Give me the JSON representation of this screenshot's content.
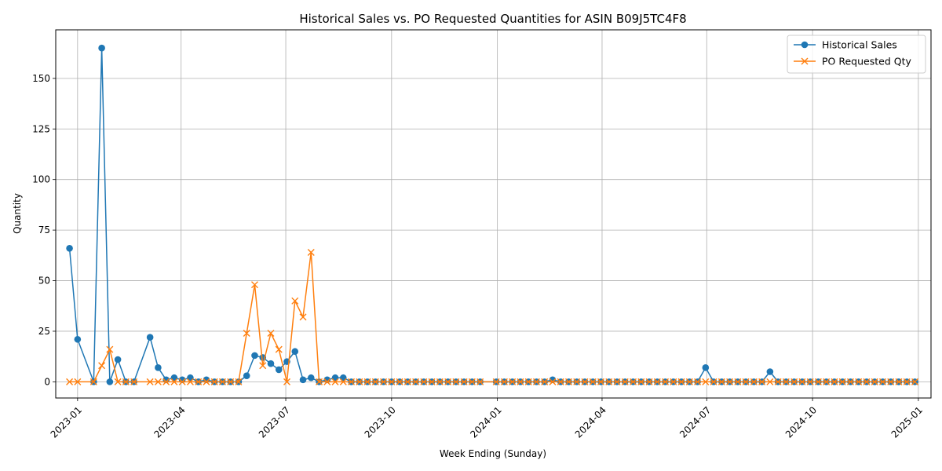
{
  "chart_data": {
    "type": "line",
    "title": "Historical Sales vs. PO Requested Quantities for ASIN B09J5TC4F8",
    "xlabel": "Week Ending (Sunday)",
    "ylabel": "Quantity",
    "x_range": [
      "2022-12-13",
      "2025-01-12"
    ],
    "ylim": [
      -8,
      174
    ],
    "grid": true,
    "legend_position": "top-right",
    "x_ticks": [
      {
        "date": "2023-01-01",
        "label": "2023-01"
      },
      {
        "date": "2023-04-01",
        "label": "2023-04"
      },
      {
        "date": "2023-07-01",
        "label": "2023-07"
      },
      {
        "date": "2023-10-01",
        "label": "2023-10"
      },
      {
        "date": "2024-01-01",
        "label": "2024-01"
      },
      {
        "date": "2024-04-01",
        "label": "2024-04"
      },
      {
        "date": "2024-07-01",
        "label": "2024-07"
      },
      {
        "date": "2024-10-01",
        "label": "2024-10"
      },
      {
        "date": "2025-01-01",
        "label": "2025-01"
      }
    ],
    "y_ticks": [
      0,
      25,
      50,
      75,
      100,
      125,
      150
    ],
    "series": [
      {
        "name": "Historical Sales",
        "color": "#1f77b4",
        "marker": "circle",
        "points": [
          [
            "2022-12-25",
            66
          ],
          [
            "2023-01-01",
            21
          ],
          [
            "2023-01-15",
            0
          ],
          [
            "2023-01-22",
            165
          ],
          [
            "2023-01-29",
            0
          ],
          [
            "2023-02-05",
            11
          ],
          [
            "2023-02-12",
            0
          ],
          [
            "2023-02-19",
            0
          ],
          [
            "2023-03-05",
            22
          ],
          [
            "2023-03-12",
            7
          ],
          [
            "2023-03-19",
            1
          ],
          [
            "2023-03-26",
            2
          ],
          [
            "2023-04-02",
            1
          ],
          [
            "2023-04-09",
            2
          ],
          [
            "2023-04-16",
            0
          ],
          [
            "2023-04-23",
            1
          ],
          [
            "2023-04-30",
            0
          ],
          [
            "2023-05-07",
            0
          ],
          [
            "2023-05-14",
            0
          ],
          [
            "2023-05-21",
            0
          ],
          [
            "2023-05-28",
            3
          ],
          [
            "2023-06-04",
            13
          ],
          [
            "2023-06-11",
            12
          ],
          [
            "2023-06-18",
            9
          ],
          [
            "2023-06-25",
            6
          ],
          [
            "2023-07-02",
            10
          ],
          [
            "2023-07-09",
            15
          ],
          [
            "2023-07-16",
            1
          ],
          [
            "2023-07-23",
            2
          ],
          [
            "2023-07-30",
            0
          ],
          [
            "2023-08-06",
            1
          ],
          [
            "2023-08-13",
            2
          ],
          [
            "2023-08-20",
            2
          ],
          [
            "2023-08-27",
            0
          ],
          [
            "2023-09-03",
            0
          ],
          [
            "2023-09-10",
            0
          ],
          [
            "2023-09-17",
            0
          ],
          [
            "2023-09-24",
            0
          ],
          [
            "2023-10-01",
            0
          ],
          [
            "2023-10-08",
            0
          ],
          [
            "2023-10-15",
            0
          ],
          [
            "2023-10-22",
            0
          ],
          [
            "2023-10-29",
            0
          ],
          [
            "2023-11-05",
            0
          ],
          [
            "2023-11-12",
            0
          ],
          [
            "2023-11-19",
            0
          ],
          [
            "2023-11-26",
            0
          ],
          [
            "2023-12-03",
            0
          ],
          [
            "2023-12-10",
            0
          ],
          [
            "2023-12-17",
            0
          ],
          [
            "2023-12-31",
            0
          ],
          [
            "2024-01-07",
            0
          ],
          [
            "2024-01-14",
            0
          ],
          [
            "2024-01-21",
            0
          ],
          [
            "2024-01-28",
            0
          ],
          [
            "2024-02-04",
            0
          ],
          [
            "2024-02-11",
            0
          ],
          [
            "2024-02-18",
            1
          ],
          [
            "2024-02-25",
            0
          ],
          [
            "2024-03-03",
            0
          ],
          [
            "2024-03-10",
            0
          ],
          [
            "2024-03-17",
            0
          ],
          [
            "2024-03-24",
            0
          ],
          [
            "2024-03-31",
            0
          ],
          [
            "2024-04-07",
            0
          ],
          [
            "2024-04-14",
            0
          ],
          [
            "2024-04-21",
            0
          ],
          [
            "2024-04-28",
            0
          ],
          [
            "2024-05-05",
            0
          ],
          [
            "2024-05-12",
            0
          ],
          [
            "2024-05-19",
            0
          ],
          [
            "2024-05-26",
            0
          ],
          [
            "2024-06-02",
            0
          ],
          [
            "2024-06-09",
            0
          ],
          [
            "2024-06-16",
            0
          ],
          [
            "2024-06-23",
            0
          ],
          [
            "2024-06-30",
            7
          ],
          [
            "2024-07-07",
            0
          ],
          [
            "2024-07-14",
            0
          ],
          [
            "2024-07-21",
            0
          ],
          [
            "2024-07-28",
            0
          ],
          [
            "2024-08-04",
            0
          ],
          [
            "2024-08-11",
            0
          ],
          [
            "2024-08-18",
            0
          ],
          [
            "2024-08-25",
            5
          ],
          [
            "2024-09-01",
            0
          ],
          [
            "2024-09-08",
            0
          ],
          [
            "2024-09-15",
            0
          ],
          [
            "2024-09-22",
            0
          ],
          [
            "2024-09-29",
            0
          ],
          [
            "2024-10-06",
            0
          ],
          [
            "2024-10-13",
            0
          ],
          [
            "2024-10-20",
            0
          ],
          [
            "2024-10-27",
            0
          ],
          [
            "2024-11-03",
            0
          ],
          [
            "2024-11-10",
            0
          ],
          [
            "2024-11-17",
            0
          ],
          [
            "2024-11-24",
            0
          ],
          [
            "2024-12-01",
            0
          ],
          [
            "2024-12-08",
            0
          ],
          [
            "2024-12-15",
            0
          ],
          [
            "2024-12-22",
            0
          ],
          [
            "2024-12-29",
            0
          ]
        ]
      },
      {
        "name": "PO Requested Qty",
        "color": "#ff7f0e",
        "marker": "x",
        "points": [
          [
            "2022-12-25",
            0
          ],
          [
            "2023-01-01",
            0
          ],
          [
            "2023-01-15",
            0
          ],
          [
            "2023-01-22",
            8
          ],
          [
            "2023-01-29",
            16
          ],
          [
            "2023-02-05",
            0
          ],
          [
            "2023-02-12",
            0
          ],
          [
            "2023-02-19",
            0
          ],
          [
            "2023-03-05",
            0
          ],
          [
            "2023-03-12",
            0
          ],
          [
            "2023-03-19",
            0
          ],
          [
            "2023-03-26",
            0
          ],
          [
            "2023-04-02",
            0
          ],
          [
            "2023-04-09",
            0
          ],
          [
            "2023-04-16",
            0
          ],
          [
            "2023-04-23",
            0
          ],
          [
            "2023-04-30",
            0
          ],
          [
            "2023-05-07",
            0
          ],
          [
            "2023-05-14",
            0
          ],
          [
            "2023-05-21",
            0
          ],
          [
            "2023-05-28",
            24
          ],
          [
            "2023-06-04",
            48
          ],
          [
            "2023-06-11",
            8
          ],
          [
            "2023-06-18",
            24
          ],
          [
            "2023-06-25",
            16
          ],
          [
            "2023-07-02",
            0
          ],
          [
            "2023-07-09",
            40
          ],
          [
            "2023-07-16",
            32
          ],
          [
            "2023-07-23",
            64
          ],
          [
            "2023-07-30",
            0
          ],
          [
            "2023-08-06",
            0
          ],
          [
            "2023-08-13",
            0
          ],
          [
            "2023-08-20",
            0
          ],
          [
            "2023-08-27",
            0
          ],
          [
            "2023-09-03",
            0
          ],
          [
            "2023-09-10",
            0
          ],
          [
            "2023-09-17",
            0
          ],
          [
            "2023-09-24",
            0
          ],
          [
            "2023-10-01",
            0
          ],
          [
            "2023-10-08",
            0
          ],
          [
            "2023-10-15",
            0
          ],
          [
            "2023-10-22",
            0
          ],
          [
            "2023-10-29",
            0
          ],
          [
            "2023-11-05",
            0
          ],
          [
            "2023-11-12",
            0
          ],
          [
            "2023-11-19",
            0
          ],
          [
            "2023-11-26",
            0
          ],
          [
            "2023-12-03",
            0
          ],
          [
            "2023-12-10",
            0
          ],
          [
            "2023-12-17",
            0
          ],
          [
            "2023-12-31",
            0
          ],
          [
            "2024-01-07",
            0
          ],
          [
            "2024-01-14",
            0
          ],
          [
            "2024-01-21",
            0
          ],
          [
            "2024-01-28",
            0
          ],
          [
            "2024-02-04",
            0
          ],
          [
            "2024-02-11",
            0
          ],
          [
            "2024-02-18",
            0
          ],
          [
            "2024-02-25",
            0
          ],
          [
            "2024-03-03",
            0
          ],
          [
            "2024-03-10",
            0
          ],
          [
            "2024-03-17",
            0
          ],
          [
            "2024-03-24",
            0
          ],
          [
            "2024-03-31",
            0
          ],
          [
            "2024-04-07",
            0
          ],
          [
            "2024-04-14",
            0
          ],
          [
            "2024-04-21",
            0
          ],
          [
            "2024-04-28",
            0
          ],
          [
            "2024-05-05",
            0
          ],
          [
            "2024-05-12",
            0
          ],
          [
            "2024-05-19",
            0
          ],
          [
            "2024-05-26",
            0
          ],
          [
            "2024-06-02",
            0
          ],
          [
            "2024-06-09",
            0
          ],
          [
            "2024-06-16",
            0
          ],
          [
            "2024-06-23",
            0
          ],
          [
            "2024-06-30",
            0
          ],
          [
            "2024-07-07",
            0
          ],
          [
            "2024-07-14",
            0
          ],
          [
            "2024-07-21",
            0
          ],
          [
            "2024-07-28",
            0
          ],
          [
            "2024-08-04",
            0
          ],
          [
            "2024-08-11",
            0
          ],
          [
            "2024-08-18",
            0
          ],
          [
            "2024-08-25",
            0
          ],
          [
            "2024-09-01",
            0
          ],
          [
            "2024-09-08",
            0
          ],
          [
            "2024-09-15",
            0
          ],
          [
            "2024-09-22",
            0
          ],
          [
            "2024-09-29",
            0
          ],
          [
            "2024-10-06",
            0
          ],
          [
            "2024-10-13",
            0
          ],
          [
            "2024-10-20",
            0
          ],
          [
            "2024-10-27",
            0
          ],
          [
            "2024-11-03",
            0
          ],
          [
            "2024-11-10",
            0
          ],
          [
            "2024-11-17",
            0
          ],
          [
            "2024-11-24",
            0
          ],
          [
            "2024-12-01",
            0
          ],
          [
            "2024-12-08",
            0
          ],
          [
            "2024-12-15",
            0
          ],
          [
            "2024-12-22",
            0
          ],
          [
            "2024-12-29",
            0
          ]
        ]
      }
    ]
  }
}
